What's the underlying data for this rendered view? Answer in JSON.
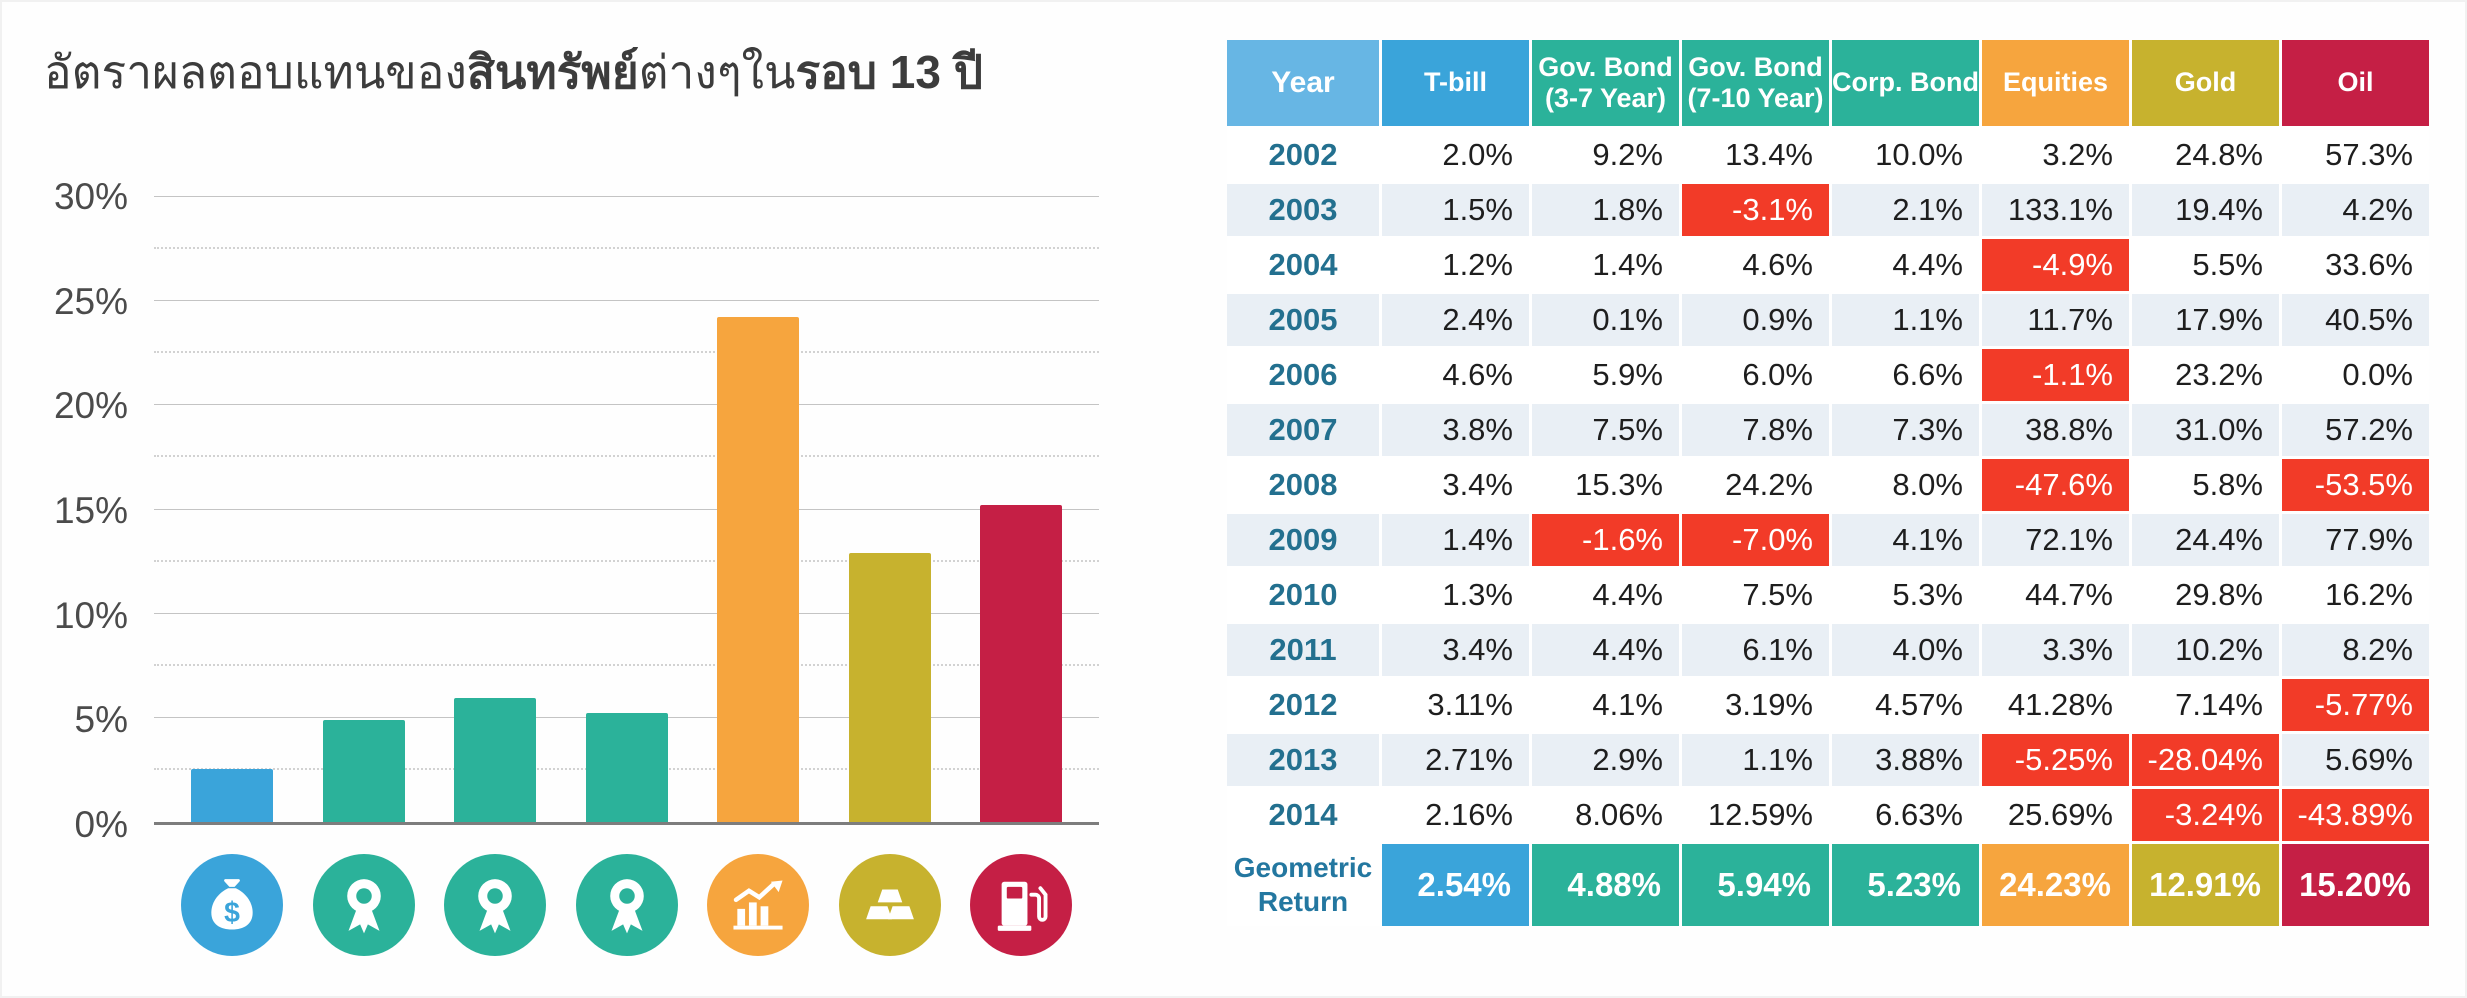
{
  "title": {
    "regular1": "อัตราผลตอบแทนของ",
    "bold1": "สินทรัพย์",
    "regular2": "ต่างๆใน",
    "bold2": "รอบ 13 ปี"
  },
  "chart_data": {
    "type": "bar",
    "title": "อัตราผลตอบแทนของสินทรัพย์ต่างๆในรอบ 13 ปี",
    "categories": [
      "T-bill",
      "Gov. Bond (3-7 Year)",
      "Gov. Bond (7-10 Year)",
      "Corp. Bond",
      "Equities",
      "Gold",
      "Oil"
    ],
    "values": [
      2.54,
      4.88,
      5.94,
      5.23,
      24.23,
      12.91,
      15.2
    ],
    "colors": [
      "#3AA4DA",
      "#2BB29A",
      "#2BB29A",
      "#2BB29A",
      "#F6A53E",
      "#C7B22E",
      "#C51F45"
    ],
    "icons": [
      "money-bag",
      "award-ribbon",
      "award-ribbon",
      "award-ribbon",
      "trend-up-chart",
      "gold-bars",
      "fuel-pump"
    ],
    "xlabel": "",
    "ylabel": "",
    "ylim": [
      0,
      30
    ],
    "ytick_step": 5,
    "ytick_labels": [
      "0%",
      "5%",
      "10%",
      "15%",
      "20%",
      "25%",
      "30%"
    ],
    "grid": true,
    "legend": "none"
  },
  "table": {
    "columns": [
      {
        "label": "Year",
        "color": "#67B6E4"
      },
      {
        "label": "T-bill",
        "color": "#3AA4DA"
      },
      {
        "label": "Gov. Bond\n(3-7 Year)",
        "color": "#2BB29A"
      },
      {
        "label": "Gov. Bond\n(7-10 Year)",
        "color": "#2BB29A"
      },
      {
        "label": "Corp. Bond",
        "color": "#2BB29A"
      },
      {
        "label": "Equities",
        "color": "#F6A53E"
      },
      {
        "label": "Gold",
        "color": "#C7B22E"
      },
      {
        "label": "Oil",
        "color": "#C51F45"
      }
    ],
    "negative_highlight_color": "#F23B28",
    "rows": [
      {
        "year": "2002",
        "values": [
          "2.0%",
          "9.2%",
          "13.4%",
          "10.0%",
          "3.2%",
          "24.8%",
          "57.3%"
        ]
      },
      {
        "year": "2003",
        "values": [
          "1.5%",
          "1.8%",
          "-3.1%",
          "2.1%",
          "133.1%",
          "19.4%",
          "4.2%"
        ]
      },
      {
        "year": "2004",
        "values": [
          "1.2%",
          "1.4%",
          "4.6%",
          "4.4%",
          "-4.9%",
          "5.5%",
          "33.6%"
        ]
      },
      {
        "year": "2005",
        "values": [
          "2.4%",
          "0.1%",
          "0.9%",
          "1.1%",
          "11.7%",
          "17.9%",
          "40.5%"
        ]
      },
      {
        "year": "2006",
        "values": [
          "4.6%",
          "5.9%",
          "6.0%",
          "6.6%",
          "-1.1%",
          "23.2%",
          "0.0%"
        ]
      },
      {
        "year": "2007",
        "values": [
          "3.8%",
          "7.5%",
          "7.8%",
          "7.3%",
          "38.8%",
          "31.0%",
          "57.2%"
        ]
      },
      {
        "year": "2008",
        "values": [
          "3.4%",
          "15.3%",
          "24.2%",
          "8.0%",
          "-47.6%",
          "5.8%",
          "-53.5%"
        ]
      },
      {
        "year": "2009",
        "values": [
          "1.4%",
          "-1.6%",
          "-7.0%",
          "4.1%",
          "72.1%",
          "24.4%",
          "77.9%"
        ]
      },
      {
        "year": "2010",
        "values": [
          "1.3%",
          "4.4%",
          "7.5%",
          "5.3%",
          "44.7%",
          "29.8%",
          "16.2%"
        ]
      },
      {
        "year": "2011",
        "values": [
          "3.4%",
          "4.4%",
          "6.1%",
          "4.0%",
          "3.3%",
          "10.2%",
          "8.2%"
        ]
      },
      {
        "year": "2012",
        "values": [
          "3.11%",
          "4.1%",
          "3.19%",
          "4.57%",
          "41.28%",
          "7.14%",
          "-5.77%"
        ]
      },
      {
        "year": "2013",
        "values": [
          "2.71%",
          "2.9%",
          "1.1%",
          "3.88%",
          "-5.25%",
          "-28.04%",
          "5.69%"
        ]
      },
      {
        "year": "2014",
        "values": [
          "2.16%",
          "8.06%",
          "12.59%",
          "6.63%",
          "25.69%",
          "-3.24%",
          "-43.89%"
        ]
      }
    ],
    "footer": {
      "label": "Geometric\nReturn",
      "values": [
        "2.54%",
        "4.88%",
        "5.94%",
        "5.23%",
        "24.23%",
        "12.91%",
        "15.20%"
      ]
    }
  }
}
